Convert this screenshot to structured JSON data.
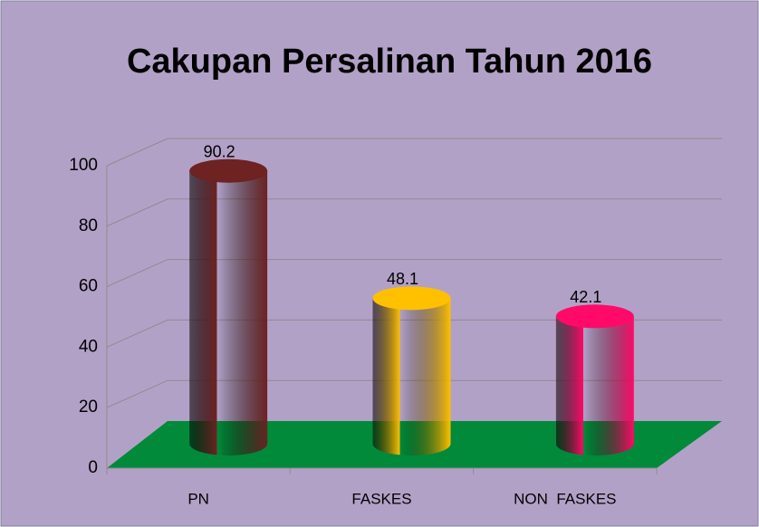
{
  "chart_data": {
    "type": "bar",
    "title": "Cakupan Persalinan Tahun 2016",
    "categories": [
      "PN",
      "FASKES",
      "NON  FASKES"
    ],
    "values": [
      90.2,
      48.1,
      42.1
    ],
    "colors": [
      "#6e2222",
      "#ffc000",
      "#ff0a68"
    ],
    "floor_color": "#008a3a",
    "ylim": [
      0,
      100
    ],
    "yticks": [
      0,
      20,
      40,
      60,
      80,
      100
    ],
    "grid": true
  }
}
